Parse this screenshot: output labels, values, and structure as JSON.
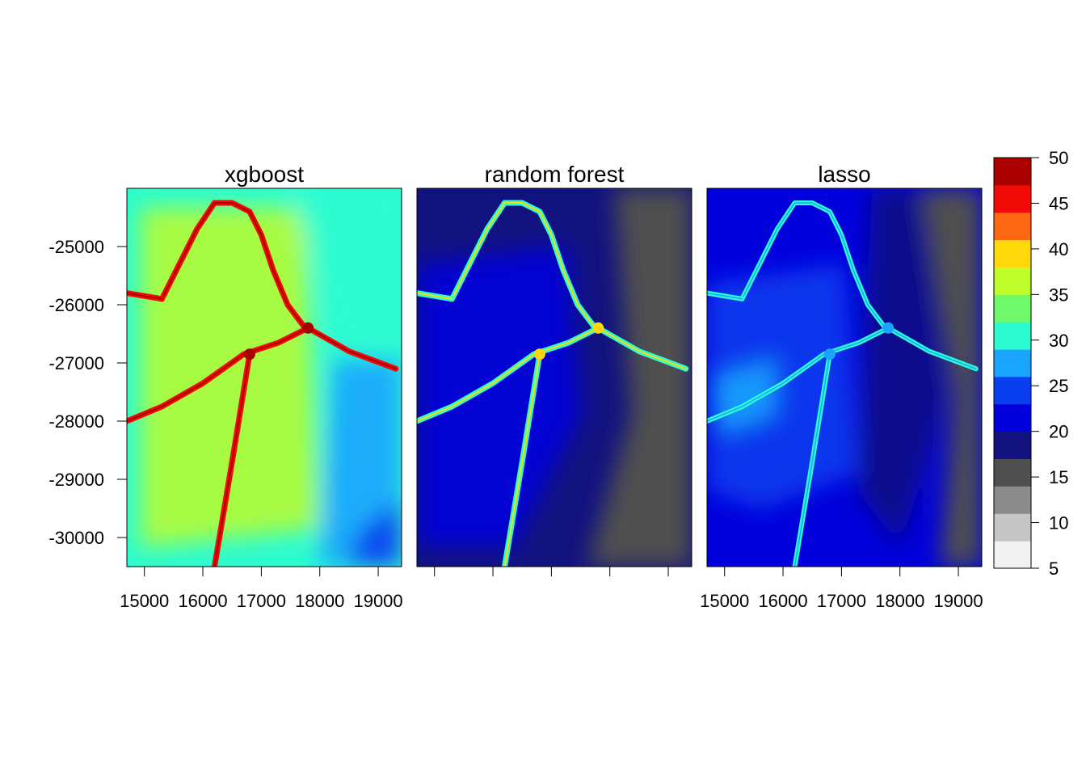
{
  "chart_data": {
    "type": "heatmap",
    "x_axis": {
      "range": [
        14700,
        19400
      ],
      "ticks": [
        15000,
        16000,
        17000,
        18000,
        19000
      ],
      "tick_labels": [
        "15000",
        "16000",
        "17000",
        "18000",
        "19000"
      ]
    },
    "y_axis": {
      "range": [
        -30500,
        -24000
      ],
      "ticks": [
        -25000,
        -26000,
        -27000,
        -28000,
        -29000,
        -30000
      ],
      "tick_labels": [
        "-25000",
        "-26000",
        "-27000",
        "-28000",
        "-29000",
        "-30000"
      ]
    },
    "panels": [
      {
        "title": "xgboost",
        "show_x_tick_labels": true,
        "show_y_tick_labels": true
      },
      {
        "title": "random forest",
        "show_x_tick_labels": false,
        "show_y_tick_labels": false
      },
      {
        "title": "lasso",
        "show_x_tick_labels": true,
        "show_y_tick_labels": false
      }
    ],
    "colorbar": {
      "breaks": [
        5,
        10,
        15,
        20,
        25,
        30,
        35,
        40,
        45,
        50
      ],
      "tick_labels": [
        "5",
        "10",
        "15",
        "20",
        "25",
        "30",
        "35",
        "40",
        "45",
        "50"
      ],
      "colors": [
        "#F2F2F2",
        "#C6C6C6",
        "#8C8C8C",
        "#505050",
        "#12127F",
        "#0000DC",
        "#0A3FF0",
        "#18A4FF",
        "#2CFCD0",
        "#6EF86A",
        "#BEFC2A",
        "#FFD80C",
        "#FF6812",
        "#F20A06",
        "#AA0000"
      ]
    },
    "road_network": {
      "loop": [
        [
          15300,
          -25900
        ],
        [
          15600,
          -25300
        ],
        [
          15900,
          -24700
        ],
        [
          16200,
          -24250
        ],
        [
          16500,
          -24250
        ],
        [
          16800,
          -24400
        ],
        [
          17000,
          -24800
        ],
        [
          17200,
          -25400
        ],
        [
          17450,
          -26000
        ],
        [
          17750,
          -26400
        ]
      ],
      "lower_road": [
        [
          14700,
          -28000
        ],
        [
          15300,
          -27750
        ],
        [
          16000,
          -27350
        ],
        [
          16700,
          -26850
        ],
        [
          17300,
          -26650
        ],
        [
          17800,
          -26400
        ]
      ],
      "south_road": [
        [
          16200,
          -30500
        ],
        [
          16500,
          -28700
        ],
        [
          16800,
          -26850
        ]
      ],
      "east_road": [
        [
          17800,
          -26400
        ],
        [
          18500,
          -26800
        ],
        [
          19300,
          -27100
        ]
      ],
      "west_road": [
        [
          14700,
          -25800
        ],
        [
          15300,
          -25900
        ]
      ]
    }
  }
}
